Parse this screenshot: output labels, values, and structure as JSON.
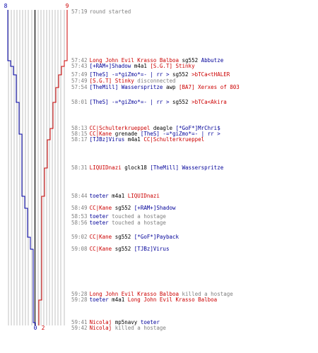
{
  "chart_data": {
    "type": "line",
    "x_ticks": [
      "8",
      "0",
      "2",
      "9"
    ],
    "colors": {
      "team_blue": "#0000aa",
      "team_red": "#cc0000",
      "divider": "#000000",
      "guide": "#c0c0c0"
    }
  },
  "events": [
    {
      "y": 17,
      "parts": [
        {
          "t": "57:19",
          "s": "ts"
        },
        {
          "t": "round started",
          "s": "pg"
        }
      ]
    },
    {
      "y": 86,
      "parts": [
        {
          "t": "57:42",
          "s": "ts"
        },
        {
          "t": "Long John Evil Krasso Balboa",
          "s": "pc"
        },
        {
          "t": " sg552 ",
          "s": "pv"
        },
        {
          "t": "Abbutze",
          "s": "pb"
        }
      ]
    },
    {
      "y": 94,
      "parts": [
        {
          "t": "57:43",
          "s": "ts"
        },
        {
          "t": "[+RAM+]Shadow",
          "s": "pb"
        },
        {
          "t": " m4a1 ",
          "s": "pv"
        },
        {
          "t": "[S.G.T] Stinky",
          "s": "pc"
        }
      ]
    },
    {
      "y": 106,
      "parts": [
        {
          "t": "57:49",
          "s": "ts"
        },
        {
          "t": "[TheS] -=*giZmo*=- | rr >",
          "s": "pb"
        },
        {
          "t": " sg552 ",
          "s": "pv"
        },
        {
          "t": ">bTCa<tHALER",
          "s": "pc"
        }
      ]
    },
    {
      "y": 115,
      "parts": [
        {
          "t": "57:49",
          "s": "ts"
        },
        {
          "t": "[S.G.T] Stinky",
          "s": "pc"
        },
        {
          "t": "  disconnected",
          "s": "pg"
        }
      ]
    },
    {
      "y": 124,
      "parts": [
        {
          "t": "57:54",
          "s": "ts"
        },
        {
          "t": "[TheMill] Wasserspritze",
          "s": "pb"
        },
        {
          "t": " awp ",
          "s": "pv"
        },
        {
          "t": "[BA7] Xerxes of 803",
          "s": "pc"
        }
      ]
    },
    {
      "y": 145,
      "parts": [
        {
          "t": "58:01",
          "s": "ts"
        },
        {
          "t": "[TheS] -=*giZmo*=- | rr >",
          "s": "pb"
        },
        {
          "t": " sg552 ",
          "s": "pv"
        },
        {
          "t": ">bTCa<Akira",
          "s": "pc"
        }
      ]
    },
    {
      "y": 182,
      "parts": [
        {
          "t": "58:13",
          "s": "ts"
        },
        {
          "t": "CC|Schulterkrueppel",
          "s": "pc"
        },
        {
          "t": " deagle ",
          "s": "pv"
        },
        {
          "t": "[*GoF*]MrChri$",
          "s": "pb"
        }
      ]
    },
    {
      "y": 190,
      "parts": [
        {
          "t": "58:15",
          "s": "ts"
        },
        {
          "t": "CC|Kane",
          "s": "pc"
        },
        {
          "t": " grenade ",
          "s": "pv"
        },
        {
          "t": "[TheS] -=*giZmo*=- | rr >",
          "s": "pb"
        }
      ]
    },
    {
      "y": 198,
      "parts": [
        {
          "t": "58:17",
          "s": "ts"
        },
        {
          "t": "[TJBz]Virus",
          "s": "pb"
        },
        {
          "t": " m4a1 ",
          "s": "pv"
        },
        {
          "t": "CC|Schulterkrueppel",
          "s": "pc"
        }
      ]
    },
    {
      "y": 238,
      "parts": [
        {
          "t": "58:31",
          "s": "ts"
        },
        {
          "t": "LIQUIDnazi",
          "s": "pc"
        },
        {
          "t": " glock18 ",
          "s": "pv"
        },
        {
          "t": "[TheMill] Wasserspritze",
          "s": "pb"
        }
      ]
    },
    {
      "y": 278,
      "parts": [
        {
          "t": "58:44",
          "s": "ts"
        },
        {
          "t": "toeter",
          "s": "pb"
        },
        {
          "t": " m4a1 ",
          "s": "pv"
        },
        {
          "t": "LIQUIDnazi",
          "s": "pc"
        }
      ]
    },
    {
      "y": 295,
      "parts": [
        {
          "t": "58:49",
          "s": "ts"
        },
        {
          "t": "CC|Kane",
          "s": "pc"
        },
        {
          "t": " sg552 ",
          "s": "pv"
        },
        {
          "t": "[+RAM+]Shadow",
          "s": "pb"
        }
      ]
    },
    {
      "y": 307,
      "parts": [
        {
          "t": "58:53",
          "s": "ts"
        },
        {
          "t": "toeter",
          "s": "pb"
        },
        {
          "t": " touched a hostage",
          "s": "pg"
        }
      ]
    },
    {
      "y": 316,
      "parts": [
        {
          "t": "58:56",
          "s": "ts"
        },
        {
          "t": "toeter",
          "s": "pb"
        },
        {
          "t": " touched a hostage",
          "s": "pg"
        }
      ]
    },
    {
      "y": 336,
      "parts": [
        {
          "t": "59:02",
          "s": "ts"
        },
        {
          "t": "CC|Kane",
          "s": "pc"
        },
        {
          "t": " sg552 ",
          "s": "pv"
        },
        {
          "t": "[*GoF*]Payback",
          "s": "pb"
        }
      ]
    },
    {
      "y": 353,
      "parts": [
        {
          "t": "59:08",
          "s": "ts"
        },
        {
          "t": "CC|Kane",
          "s": "pc"
        },
        {
          "t": " sg552 ",
          "s": "pv"
        },
        {
          "t": "[TJBz]Virus",
          "s": "pb"
        }
      ]
    },
    {
      "y": 417,
      "parts": [
        {
          "t": "59:28",
          "s": "ts"
        },
        {
          "t": "Long John Evil Krasso Balboa",
          "s": "pc"
        },
        {
          "t": " killed a hostage",
          "s": "pg"
        }
      ]
    },
    {
      "y": 425,
      "parts": [
        {
          "t": "59:28",
          "s": "ts"
        },
        {
          "t": "toeter",
          "s": "pb"
        },
        {
          "t": " m4a1 ",
          "s": "pv"
        },
        {
          "t": "Long John Evil Krasso Balboa",
          "s": "pc"
        }
      ]
    },
    {
      "y": 457,
      "parts": [
        {
          "t": "59:41",
          "s": "ts"
        },
        {
          "t": "Nicolaj",
          "s": "pc"
        },
        {
          "t": " mp5navy ",
          "s": "pv"
        },
        {
          "t": "toeter",
          "s": "pb"
        }
      ]
    },
    {
      "y": 465,
      "parts": [
        {
          "t": "59:42",
          "s": "ts"
        },
        {
          "t": "Nicolaj",
          "s": "pc"
        },
        {
          "t": " killed a hostage",
          "s": "pg"
        }
      ]
    }
  ]
}
